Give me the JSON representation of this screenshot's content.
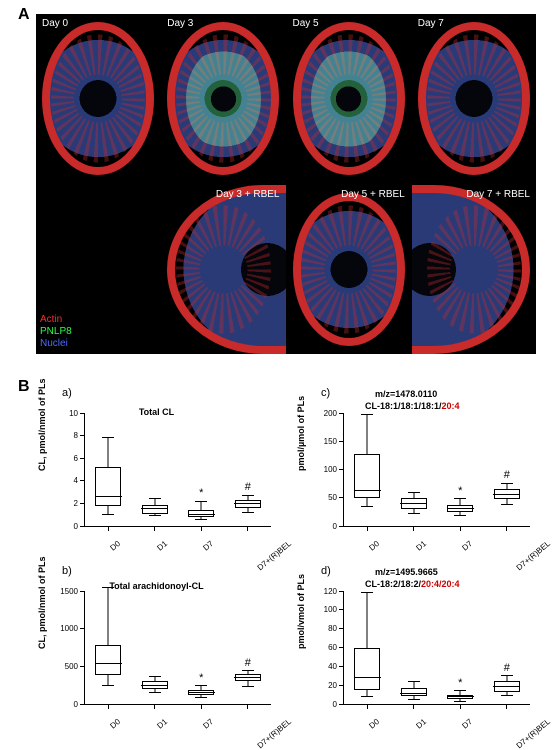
{
  "panelA": {
    "label": "A",
    "cells": [
      {
        "label": "Day 0",
        "labelSide": "left",
        "green": false,
        "shape": "full"
      },
      {
        "label": "Day 3",
        "labelSide": "left",
        "green": true,
        "shape": "full"
      },
      {
        "label": "Day 5",
        "labelSide": "left",
        "green": true,
        "shape": "full"
      },
      {
        "label": "Day 7",
        "labelSide": "left",
        "green": false,
        "shape": "full"
      },
      {
        "label": "",
        "labelSide": "right",
        "green": false,
        "shape": "none"
      },
      {
        "label": "Day 3 + RBEL",
        "labelSide": "right",
        "green": false,
        "shape": "half"
      },
      {
        "label": "Day 5 + RBEL",
        "labelSide": "right",
        "green": false,
        "shape": "full"
      },
      {
        "label": "Day 7 + RBEL",
        "labelSide": "right",
        "green": false,
        "shape": "half-r"
      }
    ],
    "legend": [
      {
        "text": "Actin",
        "color": "#ff2a2a"
      },
      {
        "text": "PNLP8",
        "color": "#2aff4a"
      },
      {
        "text": "Nuclei",
        "color": "#4a6cff"
      }
    ]
  },
  "panelB": {
    "label": "B",
    "charts": [
      {
        "sub": "a)",
        "title": "Total CL",
        "titleTop": 22,
        "ylabel": "CL, pmol/nmol of PLs",
        "ymax": 10,
        "ytick": 2,
        "groups": [
          "D0",
          "D1",
          "D7",
          "D7+(R)BEL"
        ],
        "boxes": [
          {
            "min": 1.0,
            "q1": 1.8,
            "med": 2.5,
            "q3": 5.2,
            "max": 7.8,
            "sig": ""
          },
          {
            "min": 0.9,
            "q1": 1.1,
            "med": 1.5,
            "q3": 1.9,
            "max": 2.4,
            "sig": ""
          },
          {
            "min": 0.6,
            "q1": 0.8,
            "med": 1.0,
            "q3": 1.4,
            "max": 2.2,
            "sig": "*"
          },
          {
            "min": 1.2,
            "q1": 1.6,
            "med": 2.0,
            "q3": 2.3,
            "max": 2.7,
            "sig": "#"
          }
        ]
      },
      {
        "sub": "c)",
        "mz": "m/z=1478.0110",
        "cl_black": "CL-18:1/18:1/18:1/",
        "cl_red": "20:4",
        "ylabel": "pmol/µmol of PLs",
        "ymax": 200,
        "ytick": 50,
        "groups": [
          "D0",
          "D1",
          "D7",
          "D7+(R)BEL"
        ],
        "boxes": [
          {
            "min": 35,
            "q1": 50,
            "med": 62,
            "q3": 128,
            "max": 198,
            "sig": ""
          },
          {
            "min": 22,
            "q1": 30,
            "med": 40,
            "q3": 50,
            "max": 59,
            "sig": ""
          },
          {
            "min": 18,
            "q1": 25,
            "med": 30,
            "q3": 38,
            "max": 48,
            "sig": "*"
          },
          {
            "min": 38,
            "q1": 48,
            "med": 55,
            "q3": 65,
            "max": 76,
            "sig": "#"
          }
        ]
      },
      {
        "sub": "b)",
        "title": "Total arachidonoyl-CL",
        "titleTop": 18,
        "ylabel": "CL, pmol/nmol of PLs",
        "ymax": 1500,
        "ytick": 500,
        "groups": [
          "D0",
          "D1",
          "D7",
          "D7+(R)BEL"
        ],
        "boxes": [
          {
            "min": 250,
            "q1": 380,
            "med": 530,
            "q3": 780,
            "max": 1550,
            "sig": ""
          },
          {
            "min": 150,
            "q1": 200,
            "med": 245,
            "q3": 300,
            "max": 360,
            "sig": ""
          },
          {
            "min": 90,
            "q1": 120,
            "med": 150,
            "q3": 190,
            "max": 240,
            "sig": "*"
          },
          {
            "min": 230,
            "q1": 300,
            "med": 350,
            "q3": 400,
            "max": 440,
            "sig": "#"
          }
        ]
      },
      {
        "sub": "d)",
        "mz": "m/z=1495.9665",
        "cl_black": "CL-18:2/18:2/",
        "cl_red": "20:4/20:4",
        "ylabel": "pmol/vmol of PLs",
        "ymax": 120,
        "ytick": 20,
        "groups": [
          "D0",
          "D1",
          "D7",
          "D7+(R)BEL"
        ],
        "boxes": [
          {
            "min": 8,
            "q1": 15,
            "med": 27,
            "q3": 60,
            "max": 118,
            "sig": ""
          },
          {
            "min": 5,
            "q1": 8,
            "med": 11,
            "q3": 17,
            "max": 24,
            "sig": ""
          },
          {
            "min": 3,
            "q1": 5,
            "med": 7,
            "q3": 10,
            "max": 14,
            "sig": "*"
          },
          {
            "min": 9,
            "q1": 13,
            "med": 18,
            "q3": 24,
            "max": 30,
            "sig": "#"
          }
        ]
      }
    ]
  },
  "colors": {
    "axis": "#000000",
    "box_fill": "#ffffff",
    "background": "#ffffff"
  }
}
